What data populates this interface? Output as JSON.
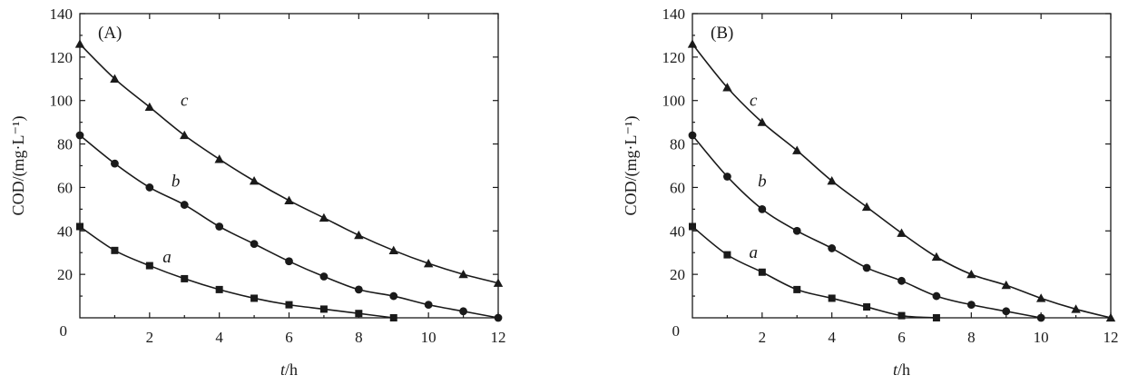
{
  "chart_data": [
    {
      "type": "line",
      "panel_label": "(A)",
      "xlabel_italic": "t",
      "xlabel_unit": "/h",
      "ylabel": "COD/(mg·L⁻¹)",
      "xlim": [
        0,
        12
      ],
      "ylim": [
        0,
        140
      ],
      "xticks": [
        2,
        4,
        6,
        8,
        10,
        12
      ],
      "yticks": [
        20,
        40,
        60,
        80,
        100,
        120,
        140
      ],
      "origin_label": "0",
      "legend": "inline-labels",
      "grid": false,
      "series": [
        {
          "name": "a",
          "marker": "square",
          "x": [
            0,
            1,
            2,
            3,
            4,
            5,
            6,
            7,
            8,
            9
          ],
          "y": [
            42,
            31,
            24,
            18,
            13,
            9,
            6,
            4,
            2,
            0
          ],
          "label_at": [
            2.5,
            28
          ]
        },
        {
          "name": "b",
          "marker": "circle",
          "x": [
            0,
            1,
            2,
            3,
            4,
            5,
            6,
            7,
            8,
            9,
            10,
            11,
            12
          ],
          "y": [
            84,
            71,
            60,
            52,
            42,
            34,
            26,
            19,
            13,
            10,
            6,
            3,
            0
          ],
          "label_at": [
            2.75,
            63
          ]
        },
        {
          "name": "c",
          "marker": "triangle",
          "x": [
            0,
            1,
            2,
            3,
            4,
            5,
            6,
            7,
            8,
            9,
            10,
            11,
            12
          ],
          "y": [
            126,
            110,
            97,
            84,
            73,
            63,
            54,
            46,
            38,
            31,
            25,
            20,
            16
          ],
          "label_at": [
            3,
            100
          ]
        }
      ]
    },
    {
      "type": "line",
      "panel_label": "(B)",
      "xlabel_italic": "t",
      "xlabel_unit": "/h",
      "ylabel": "COD/(mg·L⁻¹)",
      "xlim": [
        0,
        12
      ],
      "ylim": [
        0,
        140
      ],
      "xticks": [
        2,
        4,
        6,
        8,
        10,
        12
      ],
      "yticks": [
        20,
        40,
        60,
        80,
        100,
        120,
        140
      ],
      "origin_label": "0",
      "legend": "inline-labels",
      "grid": false,
      "series": [
        {
          "name": "a",
          "marker": "square",
          "x": [
            0,
            1,
            2,
            3,
            4,
            5,
            6,
            7
          ],
          "y": [
            42,
            29,
            21,
            13,
            9,
            5,
            1,
            0
          ],
          "label_at": [
            1.75,
            30
          ]
        },
        {
          "name": "b",
          "marker": "circle",
          "x": [
            0,
            1,
            2,
            3,
            4,
            5,
            6,
            7,
            8,
            9,
            10
          ],
          "y": [
            84,
            65,
            50,
            40,
            32,
            23,
            17,
            10,
            6,
            3,
            0
          ],
          "label_at": [
            2,
            63
          ]
        },
        {
          "name": "c",
          "marker": "triangle",
          "x": [
            0,
            1,
            2,
            3,
            4,
            5,
            6,
            7,
            8,
            9,
            10,
            11,
            12
          ],
          "y": [
            126,
            106,
            90,
            77,
            63,
            51,
            39,
            28,
            20,
            15,
            9,
            4,
            0
          ],
          "label_at": [
            1.75,
            100
          ]
        }
      ]
    }
  ]
}
